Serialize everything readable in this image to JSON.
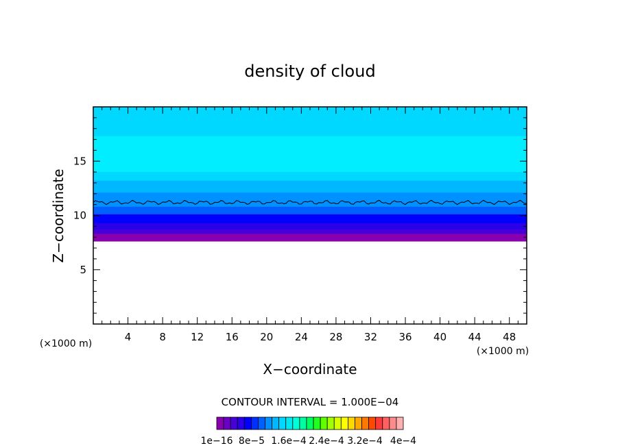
{
  "chart_data": {
    "type": "heatmap",
    "title": "density of cloud",
    "xlabel": "X−coordinate",
    "ylabel": "Z−coordinate",
    "x_unit": "(×1000 m)",
    "z_unit": "(×1000 m)",
    "xlim": [
      0,
      50
    ],
    "ylim": [
      0,
      20
    ],
    "x_ticks": [
      4,
      8,
      12,
      16,
      20,
      24,
      28,
      32,
      36,
      40,
      44,
      48
    ],
    "y_ticks": [
      5,
      10,
      15
    ],
    "grid": false,
    "contour_interval_text": "CONTOUR INTERVAL = 1.000E−04",
    "colorbar": {
      "tick_labels": [
        "1e−16",
        "8e−5",
        "1.6e−4",
        "2.4e−4",
        "3.2e−4",
        "4e−4"
      ],
      "colors": [
        "#8800b0",
        "#6a00c8",
        "#4800d8",
        "#2a00e8",
        "#0000ff",
        "#0030ff",
        "#0060ff",
        "#0090ff",
        "#00b8ff",
        "#00d8ff",
        "#00e8f0",
        "#00ffd8",
        "#00ffa0",
        "#00ff60",
        "#20ff20",
        "#60ff00",
        "#a0ff00",
        "#d8ff00",
        "#ffff00",
        "#ffd800",
        "#ffa800",
        "#ff7800",
        "#ff4800",
        "#ff3838",
        "#ff6060",
        "#ff8c8c",
        "#ffb0b0"
      ]
    },
    "cloud_layers": [
      {
        "z_bottom": 7.6,
        "z_top": 8.4,
        "color": "#8800b0"
      },
      {
        "z_bottom": 8.3,
        "z_top": 8.8,
        "color": "#4800d8"
      },
      {
        "z_bottom": 8.7,
        "z_top": 9.4,
        "color": "#2a00e8"
      },
      {
        "z_bottom": 9.3,
        "z_top": 10.2,
        "color": "#0000ff"
      },
      {
        "z_bottom": 10.1,
        "z_top": 10.9,
        "color": "#0060ff"
      },
      {
        "z_bottom": 10.8,
        "z_top": 12.2,
        "color": "#0090ff"
      },
      {
        "z_bottom": 12.1,
        "z_top": 13.3,
        "color": "#00b8ff"
      },
      {
        "z_bottom": 13.2,
        "z_top": 20.0,
        "color": "#00d8ff"
      },
      {
        "z_bottom": 14.0,
        "z_top": 17.3,
        "color": "#00eeff"
      }
    ],
    "contour_line_z": 11.2
  }
}
